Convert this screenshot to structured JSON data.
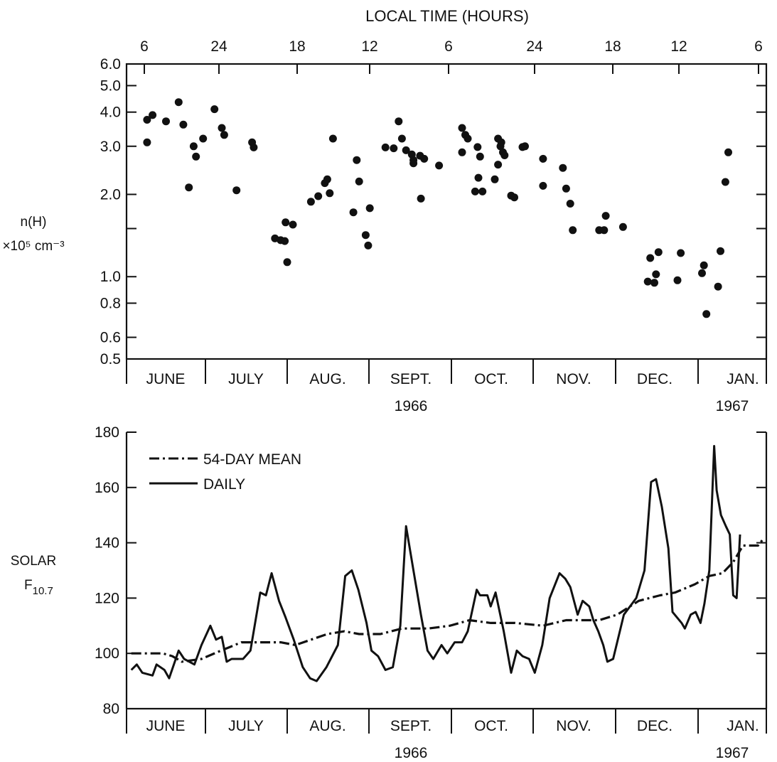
{
  "chart_data": [
    {
      "type": "scatter",
      "top_axis_label": "LOCAL TIME (HOURS)",
      "top_ticks": [
        "6",
        "24",
        "18",
        "12",
        "6",
        "24",
        "18",
        "12",
        "6"
      ],
      "ylabel_line1": "n(H)",
      "ylabel_line2": "×10⁵ cm⁻³",
      "yscale": "log",
      "ylim": [
        0.5,
        6.0
      ],
      "y_ticks": [
        0.5,
        0.6,
        0.8,
        1.0,
        2.0,
        3.0,
        4.0,
        5.0,
        6.0
      ],
      "y_tick_labels": [
        "0.5",
        "0.6",
        "0.8",
        "1.0",
        "2.0",
        "3.0",
        "4.0",
        "5.0",
        "6.0"
      ],
      "months": [
        "JUNE",
        "JULY",
        "AUG.",
        "SEPT.",
        "OCT.",
        "NOV.",
        "DEC.",
        "JAN."
      ],
      "year_labels": [
        "1966",
        "1967"
      ],
      "grid": false,
      "x_units": "months from start of June 1966",
      "points": [
        [
          0.26,
          3.75
        ],
        [
          0.26,
          3.1
        ],
        [
          0.33,
          3.9
        ],
        [
          0.5,
          3.7
        ],
        [
          0.66,
          4.35
        ],
        [
          0.72,
          3.6
        ],
        [
          0.79,
          2.12
        ],
        [
          0.85,
          3.0
        ],
        [
          0.88,
          2.75
        ],
        [
          0.97,
          3.2
        ],
        [
          1.11,
          4.1
        ],
        [
          1.2,
          3.5
        ],
        [
          1.23,
          3.3
        ],
        [
          1.38,
          2.07
        ],
        [
          1.57,
          3.1
        ],
        [
          1.59,
          2.97
        ],
        [
          1.85,
          1.38
        ],
        [
          1.92,
          1.36
        ],
        [
          1.97,
          1.35
        ],
        [
          1.98,
          1.58
        ],
        [
          2.0,
          1.13
        ],
        [
          2.07,
          1.55
        ],
        [
          2.29,
          1.88
        ],
        [
          2.38,
          1.97
        ],
        [
          2.46,
          2.2
        ],
        [
          2.49,
          2.27
        ],
        [
          2.52,
          2.02
        ],
        [
          2.56,
          3.2
        ],
        [
          2.81,
          1.72
        ],
        [
          2.85,
          2.67
        ],
        [
          2.88,
          2.23
        ],
        [
          2.96,
          1.42
        ],
        [
          2.99,
          1.3
        ],
        [
          3.01,
          1.78
        ],
        [
          3.2,
          2.97
        ],
        [
          3.3,
          2.95
        ],
        [
          3.36,
          3.7
        ],
        [
          3.4,
          3.2
        ],
        [
          3.45,
          2.9
        ],
        [
          3.52,
          2.8
        ],
        [
          3.54,
          2.67
        ],
        [
          3.54,
          2.6
        ],
        [
          3.62,
          2.77
        ],
        [
          3.63,
          1.93
        ],
        [
          3.67,
          2.7
        ],
        [
          3.85,
          2.55
        ],
        [
          4.13,
          3.5
        ],
        [
          4.13,
          2.85
        ],
        [
          4.17,
          3.3
        ],
        [
          4.2,
          3.2
        ],
        [
          4.29,
          2.05
        ],
        [
          4.32,
          2.98
        ],
        [
          4.33,
          2.3
        ],
        [
          4.35,
          2.75
        ],
        [
          4.38,
          2.05
        ],
        [
          4.53,
          2.27
        ],
        [
          4.57,
          3.2
        ],
        [
          4.57,
          2.57
        ],
        [
          4.6,
          3.0
        ],
        [
          4.61,
          3.1
        ],
        [
          4.63,
          2.85
        ],
        [
          4.65,
          2.78
        ],
        [
          4.73,
          1.98
        ],
        [
          4.77,
          1.95
        ],
        [
          4.87,
          2.98
        ],
        [
          4.9,
          3.0
        ],
        [
          5.12,
          2.7
        ],
        [
          5.12,
          2.15
        ],
        [
          5.36,
          2.5
        ],
        [
          5.4,
          2.1
        ],
        [
          5.45,
          1.85
        ],
        [
          5.48,
          1.48
        ],
        [
          5.8,
          1.48
        ],
        [
          5.86,
          1.48
        ],
        [
          5.88,
          1.67
        ],
        [
          6.09,
          1.52
        ],
        [
          6.39,
          0.96
        ],
        [
          6.42,
          1.17
        ],
        [
          6.47,
          0.95
        ],
        [
          6.49,
          1.02
        ],
        [
          6.52,
          1.23
        ],
        [
          6.75,
          0.97
        ],
        [
          6.79,
          1.22
        ],
        [
          7.08,
          1.03
        ],
        [
          7.12,
          1.1
        ],
        [
          7.17,
          0.73
        ],
        [
          7.41,
          0.92
        ],
        [
          7.46,
          1.24
        ],
        [
          7.56,
          2.22
        ],
        [
          7.62,
          2.85
        ]
      ]
    },
    {
      "type": "line",
      "ylabel_line1": "SOLAR",
      "ylabel_line2": "F",
      "ylabel_sub": "10.7",
      "ylim": [
        80,
        180
      ],
      "y_ticks": [
        80,
        100,
        120,
        140,
        160,
        180
      ],
      "months": [
        "JUNE",
        "JULY",
        "AUG.",
        "SEPT.",
        "OCT.",
        "NOV.",
        "DEC.",
        "JAN."
      ],
      "year_labels": [
        "1966",
        "1967"
      ],
      "grid": false,
      "legend_placement": "top-left",
      "x_units": "months from start of June 1966",
      "series": [
        {
          "name": "54-DAY MEAN",
          "style": "dash-dot",
          "points": [
            [
              0.06,
              100
            ],
            [
              0.46,
              100
            ],
            [
              0.58,
              99
            ],
            [
              0.7,
              97
            ],
            [
              0.95,
              98
            ],
            [
              1.19,
              101
            ],
            [
              1.44,
              104
            ],
            [
              1.62,
              104
            ],
            [
              1.92,
              104
            ],
            [
              2.1,
              103
            ],
            [
              2.49,
              107
            ],
            [
              2.7,
              108
            ],
            [
              2.88,
              107
            ],
            [
              3.14,
              107
            ],
            [
              3.4,
              109
            ],
            [
              3.72,
              109
            ],
            [
              3.98,
              110
            ],
            [
              4.22,
              112
            ],
            [
              4.48,
              111
            ],
            [
              4.78,
              111
            ],
            [
              5.12,
              110
            ],
            [
              5.4,
              112
            ],
            [
              5.8,
              112
            ],
            [
              6.02,
              114
            ],
            [
              6.28,
              119
            ],
            [
              6.54,
              121
            ],
            [
              6.72,
              122
            ],
            [
              6.96,
              125
            ],
            [
              7.23,
              128
            ],
            [
              7.5,
              129
            ],
            [
              7.72,
              133
            ],
            [
              7.92,
              139
            ],
            [
              8.23,
              139
            ],
            [
              8.32,
              141
            ]
          ]
        },
        {
          "name": "DAILY",
          "style": "solid",
          "points": [
            [
              0.06,
              94
            ],
            [
              0.13,
              96
            ],
            [
              0.2,
              93
            ],
            [
              0.33,
              92
            ],
            [
              0.38,
              96
            ],
            [
              0.48,
              94
            ],
            [
              0.54,
              91
            ],
            [
              0.66,
              101
            ],
            [
              0.73,
              98
            ],
            [
              0.86,
              96
            ],
            [
              0.95,
              103
            ],
            [
              1.06,
              110
            ],
            [
              1.13,
              105
            ],
            [
              1.2,
              106
            ],
            [
              1.26,
              97
            ],
            [
              1.32,
              98
            ],
            [
              1.46,
              98
            ],
            [
              1.55,
              101
            ],
            [
              1.67,
              122
            ],
            [
              1.74,
              121
            ],
            [
              1.81,
              129
            ],
            [
              1.9,
              119
            ],
            [
              1.98,
              113
            ],
            [
              2.08,
              105
            ],
            [
              2.19,
              95
            ],
            [
              2.28,
              91
            ],
            [
              2.36,
              90
            ],
            [
              2.48,
              95
            ],
            [
              2.62,
              103
            ],
            [
              2.71,
              128
            ],
            [
              2.79,
              130
            ],
            [
              2.87,
              123
            ],
            [
              2.97,
              111
            ],
            [
              3.03,
              101
            ],
            [
              3.11,
              99
            ],
            [
              3.2,
              94
            ],
            [
              3.29,
              95
            ],
            [
              3.38,
              110
            ],
            [
              3.45,
              146
            ],
            [
              3.54,
              130
            ],
            [
              3.63,
              114
            ],
            [
              3.71,
              101
            ],
            [
              3.78,
              98
            ],
            [
              3.88,
              103
            ],
            [
              3.95,
              100
            ],
            [
              4.04,
              104
            ],
            [
              4.13,
              104
            ],
            [
              4.2,
              108
            ],
            [
              4.31,
              123
            ],
            [
              4.35,
              121
            ],
            [
              4.44,
              121
            ],
            [
              4.48,
              117
            ],
            [
              4.54,
              122
            ],
            [
              4.64,
              108
            ],
            [
              4.73,
              93
            ],
            [
              4.8,
              101
            ],
            [
              4.87,
              99
            ],
            [
              4.95,
              98
            ],
            [
              5.02,
              93
            ],
            [
              5.11,
              103
            ],
            [
              5.2,
              120
            ],
            [
              5.32,
              129
            ],
            [
              5.39,
              127
            ],
            [
              5.45,
              124
            ],
            [
              5.54,
              114
            ],
            [
              5.6,
              119
            ],
            [
              5.68,
              117
            ],
            [
              5.73,
              112
            ],
            [
              5.79,
              108
            ],
            [
              5.85,
              103
            ],
            [
              5.9,
              97
            ],
            [
              5.97,
              98
            ],
            [
              6.1,
              114
            ],
            [
              6.25,
              120
            ],
            [
              6.35,
              130
            ],
            [
              6.43,
              162
            ],
            [
              6.49,
              163
            ],
            [
              6.56,
              153
            ],
            [
              6.64,
              138
            ],
            [
              6.69,
              115
            ],
            [
              6.8,
              111
            ],
            [
              6.84,
              109
            ],
            [
              6.91,
              114
            ],
            [
              6.97,
              115
            ],
            [
              7.05,
              111
            ],
            [
              7.13,
              118
            ],
            [
              7.23,
              130
            ],
            [
              7.33,
              175
            ],
            [
              7.38,
              159
            ],
            [
              7.47,
              150
            ],
            [
              7.57,
              146
            ],
            [
              7.65,
              143
            ],
            [
              7.72,
              121
            ],
            [
              7.79,
              120
            ],
            [
              7.86,
              143
            ]
          ]
        }
      ]
    }
  ]
}
